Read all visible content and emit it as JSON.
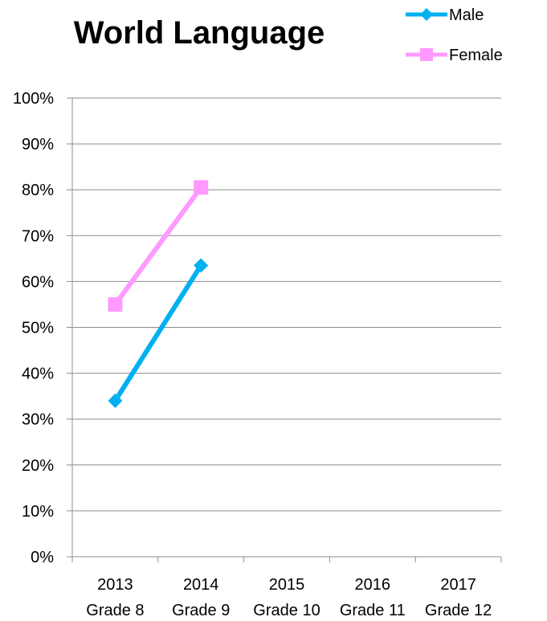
{
  "chart_data": {
    "type": "line",
    "title": "World Language",
    "xlabel": "",
    "ylabel": "",
    "categories": [
      {
        "year": "2013",
        "grade": "Grade 8"
      },
      {
        "year": "2014",
        "grade": "Grade 9"
      },
      {
        "year": "2015",
        "grade": "Grade 10"
      },
      {
        "year": "2016",
        "grade": "Grade 11"
      },
      {
        "year": "2017",
        "grade": "Grade 12"
      }
    ],
    "y_ticks": [
      "0%",
      "10%",
      "20%",
      "30%",
      "40%",
      "50%",
      "60%",
      "70%",
      "80%",
      "90%",
      "100%"
    ],
    "ylim": [
      0,
      100
    ],
    "y_unit": "%",
    "grid": true,
    "legend": "top-right",
    "series": [
      {
        "name": "Male",
        "color": "#00b0f0",
        "marker": "diamond",
        "values": [
          34,
          63.5,
          null,
          null,
          null
        ]
      },
      {
        "name": "Female",
        "color": "#ff99ff",
        "marker": "square",
        "values": [
          55,
          80.5,
          null,
          null,
          null
        ]
      }
    ]
  }
}
